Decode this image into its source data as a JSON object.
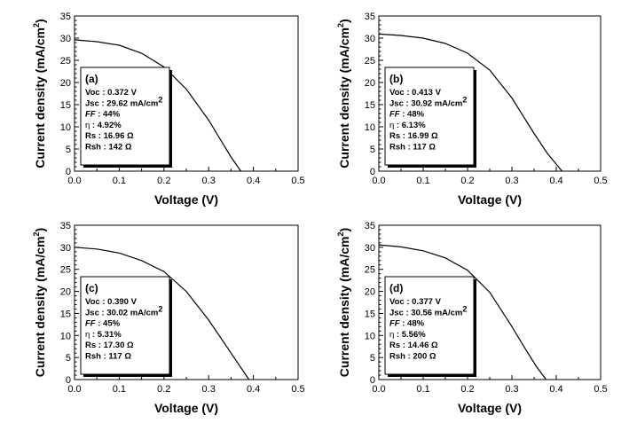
{
  "chart_data": [
    {
      "type": "line",
      "label": "(a)",
      "xlabel": "Voltage (V)",
      "ylabel": "Current density (mA/cm",
      "ylabel_sup": "2",
      "ylabel_end": ")",
      "xlim": [
        0.0,
        0.5
      ],
      "ylim": [
        0,
        35
      ],
      "xticks": [
        "0.0",
        "0.1",
        "0.2",
        "0.3",
        "0.4",
        "0.5"
      ],
      "yticks": [
        "0",
        "5",
        "10",
        "15",
        "20",
        "25",
        "30",
        "35"
      ],
      "series": [
        {
          "x": [
            0,
            0.05,
            0.1,
            0.15,
            0.2,
            0.25,
            0.3,
            0.33,
            0.35,
            0.372
          ],
          "y": [
            29.62,
            29.2,
            28.4,
            26.6,
            23.5,
            18.5,
            11.5,
            6.5,
            3.2,
            0
          ]
        }
      ],
      "box": {
        "voc": "Voc : 0.372 V",
        "jsc": "Jsc : 29.62 mA/cm",
        "jsc_sup": "2",
        "ff_label": "FF",
        "ff": " : 44%",
        "eta_label": "η",
        "eta": " : 4.92%",
        "rs": "Rs : 16.96 Ω",
        "rsh": "Rsh : 142 Ω"
      }
    },
    {
      "type": "line",
      "label": "(b)",
      "xlabel": "Voltage (V)",
      "ylabel": "Current density (mA/cm",
      "ylabel_sup": "2",
      "ylabel_end": ")",
      "xlim": [
        0.0,
        0.5
      ],
      "ylim": [
        0,
        35
      ],
      "xticks": [
        "0.0",
        "0.1",
        "0.2",
        "0.3",
        "0.4",
        "0.5"
      ],
      "yticks": [
        "0",
        "5",
        "10",
        "15",
        "20",
        "25",
        "30",
        "35"
      ],
      "series": [
        {
          "x": [
            0,
            0.05,
            0.1,
            0.15,
            0.2,
            0.25,
            0.3,
            0.35,
            0.38,
            0.413
          ],
          "y": [
            30.92,
            30.6,
            30.0,
            28.8,
            26.6,
            22.8,
            16.5,
            8.5,
            4.0,
            0
          ]
        }
      ],
      "box": {
        "voc": "Voc : 0.413 V",
        "jsc": "Jsc : 30.92 mA/cm",
        "jsc_sup": "2",
        "ff_label": "FF",
        "ff": " : 48%",
        "eta_label": "η",
        "eta": " : 6.13%",
        "rs": "Rs : 16.99 Ω",
        "rsh": "Rsh : 117 Ω"
      }
    },
    {
      "type": "line",
      "label": "(c)",
      "xlabel": "Voltage (V)",
      "ylabel": "Current density (mA/cm",
      "ylabel_sup": "2",
      "ylabel_end": ")",
      "xlim": [
        0.0,
        0.5
      ],
      "ylim": [
        0,
        35
      ],
      "xticks": [
        "0.0",
        "0.1",
        "0.2",
        "0.3",
        "0.4",
        "0.5"
      ],
      "yticks": [
        "0",
        "5",
        "10",
        "15",
        "20",
        "25",
        "30",
        "35"
      ],
      "series": [
        {
          "x": [
            0,
            0.05,
            0.1,
            0.15,
            0.2,
            0.25,
            0.3,
            0.34,
            0.37,
            0.39
          ],
          "y": [
            30.02,
            29.6,
            28.7,
            27.0,
            24.5,
            20.0,
            13.5,
            7.5,
            3.0,
            0
          ]
        }
      ],
      "box": {
        "voc": "Voc : 0.390 V",
        "jsc": "Jsc : 30.02 mA/cm",
        "jsc_sup": "2",
        "ff_label": "FF",
        "ff": " : 45%",
        "eta_label": "η",
        "eta": " : 5.31%",
        "rs": "Rs : 17.30 Ω",
        "rsh": "Rsh : 117 Ω"
      }
    },
    {
      "type": "line",
      "label": "(d)",
      "xlabel": "Voltage (V)",
      "ylabel": "Current density (mA/cm",
      "ylabel_sup": "2",
      "ylabel_end": ")",
      "xlim": [
        0.0,
        0.5
      ],
      "ylim": [
        0,
        35
      ],
      "xticks": [
        "0.0",
        "0.1",
        "0.2",
        "0.3",
        "0.4",
        "0.5"
      ],
      "yticks": [
        "0",
        "5",
        "10",
        "15",
        "20",
        "25",
        "30",
        "35"
      ],
      "series": [
        {
          "x": [
            0,
            0.05,
            0.1,
            0.15,
            0.2,
            0.25,
            0.3,
            0.33,
            0.355,
            0.377
          ],
          "y": [
            30.56,
            30.1,
            29.2,
            27.6,
            24.8,
            19.8,
            12.0,
            7.0,
            3.0,
            0
          ]
        }
      ],
      "box": {
        "voc": "Voc : 0.377 V",
        "jsc": "Jsc : 30.56 mA/cm",
        "jsc_sup": "2",
        "ff_label": "FF",
        "ff": " : 48%",
        "eta_label": "η",
        "eta": " : 5.56%",
        "rs": "Rs : 14.46 Ω",
        "rsh": "Rsh : 200 Ω"
      }
    }
  ]
}
